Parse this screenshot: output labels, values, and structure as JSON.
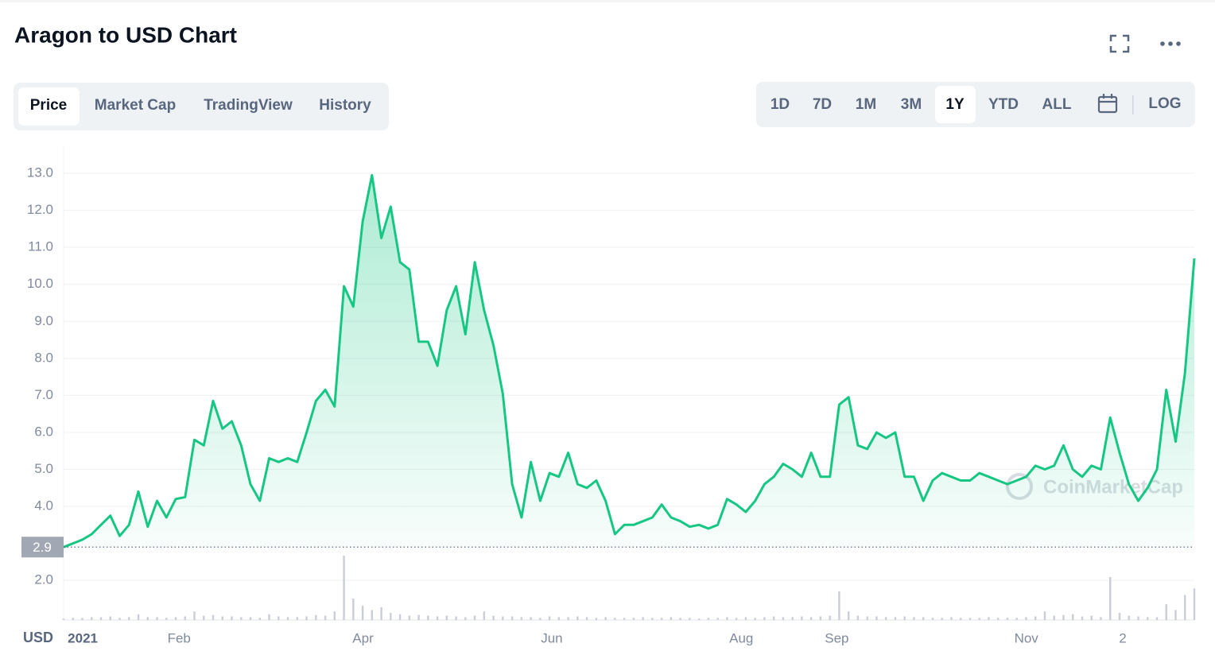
{
  "header": {
    "title": "Aragon to USD Chart"
  },
  "tabs": [
    "Price",
    "Market Cap",
    "TradingView",
    "History"
  ],
  "ranges": [
    "1D",
    "7D",
    "1M",
    "3M",
    "1Y",
    "YTD",
    "ALL"
  ],
  "log_button": "LOG",
  "chart_data": {
    "type": "line",
    "currency": "USD",
    "watermark": "CoinMarketCap",
    "color": "#16c784",
    "volume_color": "#c9ced6",
    "values": [
      2.9,
      3.0,
      3.1,
      3.25,
      3.5,
      3.75,
      3.2,
      3.5,
      4.4,
      3.45,
      4.15,
      3.7,
      4.2,
      4.25,
      5.8,
      5.65,
      6.85,
      6.1,
      6.3,
      5.65,
      4.6,
      4.15,
      5.3,
      5.2,
      5.3,
      5.2,
      6.0,
      6.85,
      7.15,
      6.7,
      9.95,
      9.4,
      11.7,
      12.95,
      11.25,
      12.1,
      10.6,
      10.4,
      8.45,
      8.45,
      7.8,
      9.3,
      9.95,
      8.65,
      10.6,
      9.3,
      8.35,
      7.05,
      4.6,
      3.7,
      5.2,
      4.15,
      4.9,
      4.8,
      5.45,
      4.6,
      4.5,
      4.7,
      4.15,
      3.25,
      3.5,
      3.5,
      3.6,
      3.7,
      4.05,
      3.7,
      3.6,
      3.45,
      3.5,
      3.4,
      3.5,
      4.2,
      4.05,
      3.85,
      4.15,
      4.6,
      4.8,
      5.15,
      5.0,
      4.8,
      5.45,
      4.8,
      4.8,
      6.75,
      6.95,
      5.65,
      5.55,
      6.0,
      5.85,
      6.0,
      4.8,
      4.8,
      4.15,
      4.7,
      4.9,
      4.8,
      4.7,
      4.7,
      4.9,
      4.8,
      4.7,
      4.6,
      4.7,
      4.8,
      5.1,
      5.0,
      5.1,
      5.65,
      5.0,
      4.8,
      5.1,
      5.0,
      6.4,
      5.45,
      4.6,
      4.15,
      4.5,
      5.0,
      7.15,
      5.75,
      7.6,
      10.7
    ],
    "volume": [
      2,
      3,
      3,
      4,
      4,
      5,
      3,
      4,
      8,
      4,
      4,
      3,
      4,
      5,
      12,
      6,
      7,
      5,
      5,
      4,
      4,
      3,
      8,
      5,
      4,
      4,
      5,
      7,
      6,
      12,
      90,
      30,
      20,
      14,
      18,
      10,
      8,
      6,
      7,
      6,
      5,
      6,
      5,
      4,
      6,
      12,
      6,
      5,
      5,
      4,
      4,
      3,
      5,
      4,
      4,
      5,
      4,
      3,
      4,
      3,
      3,
      3,
      4,
      3,
      3,
      4,
      3,
      3,
      2,
      3,
      3,
      4,
      3,
      4,
      3,
      4,
      5,
      4,
      4,
      5,
      4,
      5,
      6,
      40,
      12,
      6,
      5,
      5,
      4,
      4,
      5,
      4,
      4,
      3,
      3,
      4,
      3,
      3,
      3,
      4,
      3,
      3,
      3,
      4,
      5,
      12,
      6,
      7,
      8,
      5,
      6,
      4,
      60,
      10,
      6,
      5,
      4,
      4,
      22,
      14,
      35,
      44
    ],
    "volume_lim": [
      0,
      100
    ],
    "xlim": [
      0,
      121
    ],
    "xticks": [
      {
        "value": 2.05,
        "label": "2021"
      },
      {
        "value": 12.36,
        "label": "Feb"
      },
      {
        "value": 32.04,
        "label": "Apr"
      },
      {
        "value": 52.24,
        "label": "Jun"
      },
      {
        "value": 72.52,
        "label": "Aug"
      },
      {
        "value": 82.74,
        "label": "Sep"
      },
      {
        "value": 103.02,
        "label": "Nov"
      },
      {
        "value": 113.34,
        "label": "2"
      }
    ],
    "ylim": [
      0.93,
      13.71
    ],
    "yticks": [
      {
        "value": 2,
        "label": "2.0"
      },
      {
        "value": 4,
        "label": "4.0"
      },
      {
        "value": 5,
        "label": "5.0"
      },
      {
        "value": 6,
        "label": "6.0"
      },
      {
        "value": 7,
        "label": "7.0"
      },
      {
        "value": 8,
        "label": "8.0"
      },
      {
        "value": 9,
        "label": "9.0"
      },
      {
        "value": 10,
        "label": "10.0"
      },
      {
        "value": 11,
        "label": "11.0"
      },
      {
        "value": 12,
        "label": "12.0"
      },
      {
        "value": 13,
        "label": "13.0"
      }
    ],
    "reference_line": 2.9,
    "grid": true
  }
}
